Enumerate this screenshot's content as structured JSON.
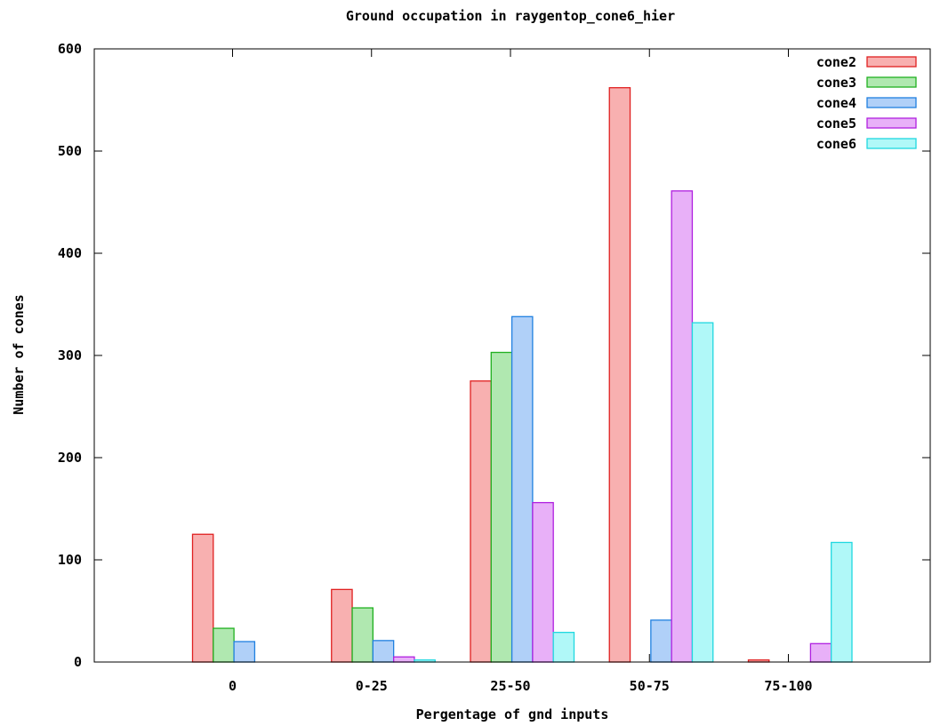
{
  "chart_data": {
    "type": "bar",
    "title": "Ground occupation in raygentop_cone6_hier",
    "xlabel": "Pergentage of gnd inputs",
    "ylabel": "Number of cones",
    "categories": [
      "0",
      "0-25",
      "25-50",
      "50-75",
      "75-100"
    ],
    "ylim": [
      0,
      600
    ],
    "yticks": [
      "0",
      "100",
      "200",
      "300",
      "400",
      "500",
      "600"
    ],
    "grid": false,
    "legend_position": "top-right",
    "series": [
      {
        "name": "cone2",
        "values": [
          125,
          71,
          275,
          562,
          2
        ],
        "fill": "#f8b0b0",
        "stroke": "#e02020"
      },
      {
        "name": "cone3",
        "values": [
          33,
          53,
          303,
          0,
          0
        ],
        "fill": "#b0e8b0",
        "stroke": "#20b020"
      },
      {
        "name": "cone4",
        "values": [
          20,
          21,
          338,
          41,
          0
        ],
        "fill": "#b0d0f8",
        "stroke": "#2080e0"
      },
      {
        "name": "cone5",
        "values": [
          0,
          5,
          156,
          461,
          18
        ],
        "fill": "#e8b0f8",
        "stroke": "#b020e0"
      },
      {
        "name": "cone6",
        "values": [
          0,
          2,
          29,
          332,
          117
        ],
        "fill": "#b0f8f8",
        "stroke": "#20d8e0"
      }
    ]
  }
}
